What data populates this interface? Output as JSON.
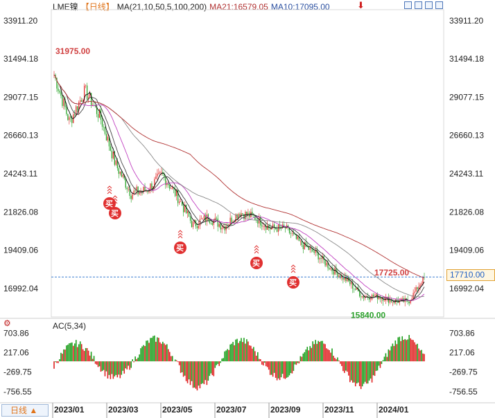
{
  "header": {
    "symbol": "LME镍",
    "period": "【日线】",
    "ma_label": "MA(21,10,50,5,100,200)",
    "ma21": "MA21:16579.05",
    "ma10": "MA10:17095.00"
  },
  "ac_header": "AC(5,34)",
  "period_button": "日线",
  "price_tag": "17710.00",
  "icons": [
    "down-arrow-icon",
    "zoom-in-icon",
    "zoom-out-icon",
    "left-icon",
    "right-icon",
    "gear-icon",
    "expand-icon"
  ],
  "colors": {
    "up": "#e02020",
    "down": "#1a9e1a",
    "ma_long": "#b03030",
    "ma_mid": "#c040c0",
    "ma_slow": "#888888",
    "ma_fast": "#000000",
    "dash": "#3b7fd1"
  },
  "chart_data": [
    {
      "type": "candlestick",
      "ylim": [
        15200,
        34600
      ],
      "yticks": [
        "33911.20",
        "31494.18",
        "29077.15",
        "26660.13",
        "24243.11",
        "21826.08",
        "19409.06",
        "16992.04"
      ],
      "xticks": [
        "2023/01",
        "2023/03",
        "2023/05",
        "2023/07",
        "2023/09",
        "2023/11",
        "2024/01"
      ],
      "annotations": [
        {
          "text": "31975.00",
          "value": 31975
        },
        {
          "text": "17725.00",
          "value": 17725
        },
        {
          "text": "15840.00",
          "value": 15840
        }
      ],
      "buy_marks": [
        "买",
        "买",
        "买",
        "买",
        "买"
      ],
      "dashed_level": 17725,
      "close_series": [
        {
          "x": "2023/01",
          "y": 30500
        },
        {
          "x": "2023/01",
          "y": 27500
        },
        {
          "x": "2023/02",
          "y": 29500
        },
        {
          "x": "2023/02",
          "y": 27800
        },
        {
          "x": "2023/03",
          "y": 24800
        },
        {
          "x": "2023/03",
          "y": 23000
        },
        {
          "x": "2023/04",
          "y": 23200
        },
        {
          "x": "2023/04",
          "y": 24200
        },
        {
          "x": "2023/05",
          "y": 22800
        },
        {
          "x": "2023/05",
          "y": 21000
        },
        {
          "x": "2023/06",
          "y": 21500
        },
        {
          "x": "2023/06",
          "y": 20900
        },
        {
          "x": "2023/07",
          "y": 21800
        },
        {
          "x": "2023/07",
          "y": 21500
        },
        {
          "x": "2023/08",
          "y": 20800
        },
        {
          "x": "2023/08",
          "y": 20800
        },
        {
          "x": "2023/09",
          "y": 19800
        },
        {
          "x": "2023/09",
          "y": 19200
        },
        {
          "x": "2023/10",
          "y": 18200
        },
        {
          "x": "2023/11",
          "y": 17500
        },
        {
          "x": "2023/11",
          "y": 16500
        },
        {
          "x": "2023/12",
          "y": 16500
        },
        {
          "x": "2024/01",
          "y": 16200
        },
        {
          "x": "2024/01",
          "y": 16200
        },
        {
          "x": "2024/02",
          "y": 17710
        }
      ]
    },
    {
      "type": "bar",
      "title": "AC(5,34)",
      "ylim": [
        -1000,
        900
      ],
      "yticks": [
        "703.86",
        "217.06",
        "-269.75",
        "-756.55"
      ]
    }
  ]
}
